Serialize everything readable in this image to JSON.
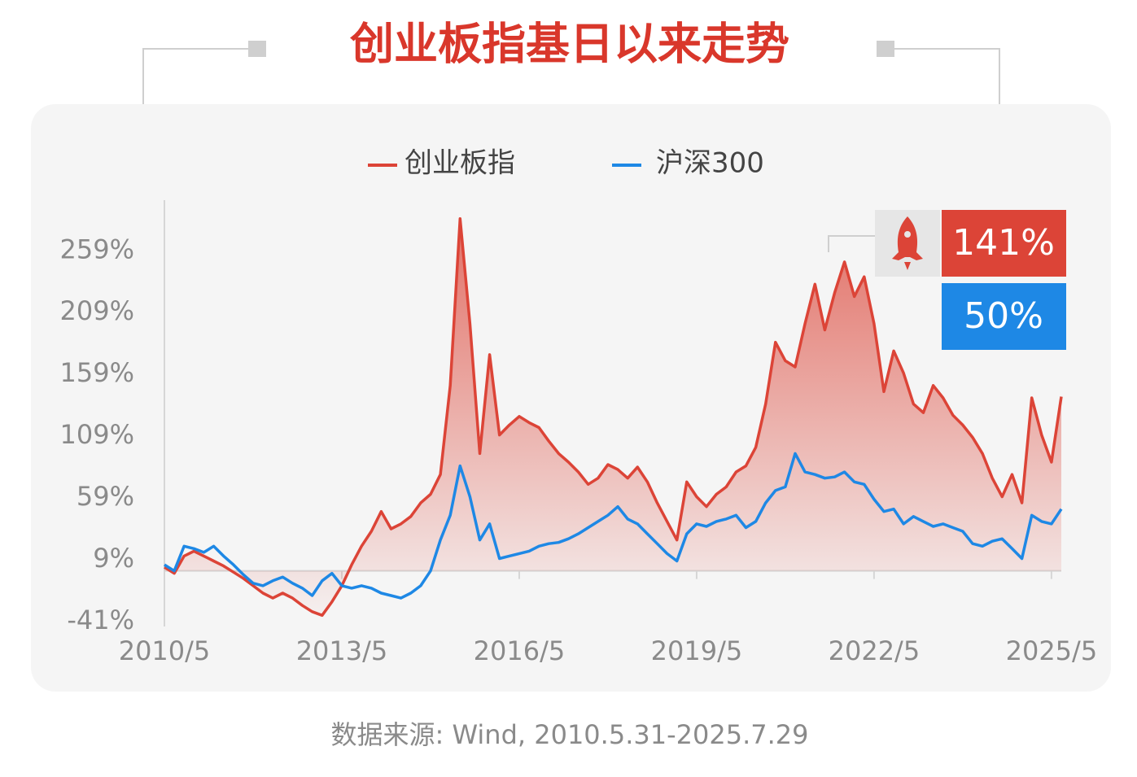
{
  "chart_data": {
    "type": "line",
    "title": "创业板指基日以来走势",
    "source": "数据来源: Wind, 2010.5.31-2025.7.29",
    "x": [
      "2010/5",
      "2010/7",
      "2010/9",
      "2010/11",
      "2011/1",
      "2011/3",
      "2011/5",
      "2011/7",
      "2011/9",
      "2011/11",
      "2012/1",
      "2012/3",
      "2012/5",
      "2012/7",
      "2012/9",
      "2012/11",
      "2013/1",
      "2013/3",
      "2013/5",
      "2013/7",
      "2013/9",
      "2013/11",
      "2014/1",
      "2014/3",
      "2014/5",
      "2014/7",
      "2014/9",
      "2014/11",
      "2015/1",
      "2015/3",
      "2015/5",
      "2015/7",
      "2015/9",
      "2015/11",
      "2016/1",
      "2016/3",
      "2016/5",
      "2016/7",
      "2016/9",
      "2016/11",
      "2017/1",
      "2017/3",
      "2017/5",
      "2017/7",
      "2017/9",
      "2017/11",
      "2018/1",
      "2018/3",
      "2018/5",
      "2018/7",
      "2018/9",
      "2018/11",
      "2019/1",
      "2019/3",
      "2019/5",
      "2019/7",
      "2019/9",
      "2019/11",
      "2020/1",
      "2020/3",
      "2020/5",
      "2020/7",
      "2020/9",
      "2020/11",
      "2021/1",
      "2021/3",
      "2021/5",
      "2021/7",
      "2021/9",
      "2021/11",
      "2022/1",
      "2022/3",
      "2022/5",
      "2022/7",
      "2022/9",
      "2022/11",
      "2023/1",
      "2023/3",
      "2023/5",
      "2023/7",
      "2023/9",
      "2023/11",
      "2024/1",
      "2024/3",
      "2024/5",
      "2024/7",
      "2024/9",
      "2024/11",
      "2025/1",
      "2025/3",
      "2025/5",
      "2025/7"
    ],
    "series": [
      {
        "name": "创业板指",
        "color": "#dc4437",
        "area": true,
        "values": [
          3,
          -2,
          12,
          16,
          12,
          8,
          4,
          -1,
          -6,
          -12,
          -18,
          -22,
          -18,
          -22,
          -28,
          -33,
          -36,
          -25,
          -12,
          5,
          20,
          32,
          48,
          34,
          38,
          44,
          55,
          62,
          78,
          150,
          285,
          200,
          95,
          175,
          110,
          118,
          125,
          120,
          116,
          105,
          95,
          88,
          80,
          70,
          75,
          86,
          82,
          75,
          84,
          72,
          55,
          40,
          25,
          72,
          60,
          52,
          62,
          68,
          80,
          85,
          100,
          135,
          185,
          170,
          165,
          200,
          232,
          195,
          225,
          250,
          222,
          238,
          200,
          145,
          178,
          160,
          135,
          128,
          150,
          140,
          126,
          118,
          108,
          95,
          75,
          60,
          78,
          55,
          140,
          110,
          88,
          141
        ]
      },
      {
        "name": "沪深300",
        "color": "#1e88e5",
        "area": false,
        "values": [
          5,
          0,
          20,
          18,
          15,
          20,
          12,
          5,
          -3,
          -10,
          -12,
          -8,
          -5,
          -10,
          -14,
          -20,
          -8,
          -2,
          -12,
          -14,
          -12,
          -14,
          -18,
          -20,
          -22,
          -18,
          -12,
          0,
          25,
          45,
          85,
          60,
          25,
          38,
          10,
          12,
          14,
          16,
          20,
          22,
          23,
          26,
          30,
          35,
          40,
          45,
          52,
          42,
          38,
          30,
          22,
          14,
          8,
          30,
          38,
          36,
          40,
          42,
          45,
          35,
          40,
          55,
          65,
          68,
          95,
          80,
          78,
          75,
          76,
          80,
          72,
          70,
          58,
          48,
          50,
          38,
          44,
          40,
          36,
          38,
          35,
          32,
          22,
          20,
          24,
          26,
          18,
          10,
          45,
          40,
          38,
          50
        ]
      }
    ],
    "annotations": [
      {
        "text": "141%",
        "color": "#dc4437"
      },
      {
        "text": "50%",
        "color": "#1e88e5"
      }
    ],
    "xlim": [
      "2010/5",
      "2025/7"
    ],
    "xticks": [
      "2010/5",
      "2013/5",
      "2016/5",
      "2019/5",
      "2022/5",
      "2025/5"
    ],
    "ylim": [
      -45,
      300
    ],
    "yticks": [
      {
        "value": -41,
        "label": "-41%"
      },
      {
        "value": 9,
        "label": "9%"
      },
      {
        "value": 59,
        "label": "59%"
      },
      {
        "value": 109,
        "label": "109%"
      },
      {
        "value": 159,
        "label": "159%"
      },
      {
        "value": 209,
        "label": "209%"
      },
      {
        "value": 259,
        "label": "259%"
      }
    ],
    "grid": false
  }
}
